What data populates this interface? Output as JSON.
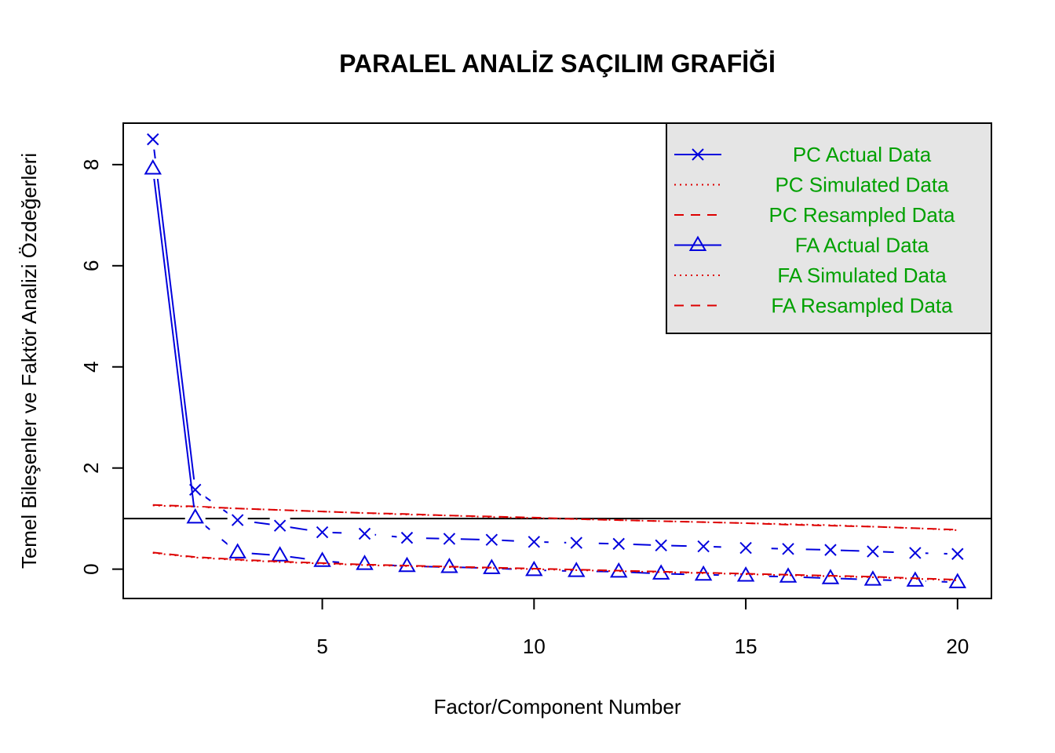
{
  "chart_data": {
    "type": "line",
    "title": "PARALEL ANALİZ SAÇILIM GRAFİĞİ",
    "xlabel": "Factor/Component Number",
    "ylabel": "Temel Bileşenler ve Faktör Analizi Özdeğerleri",
    "xlim": [
      0.3,
      20.8
    ],
    "ylim": [
      -0.58,
      8.82
    ],
    "x_ticks": [
      5,
      10,
      15,
      20
    ],
    "y_ticks": [
      0,
      2,
      4,
      6,
      8
    ],
    "reference_line": 1,
    "legend_position": "top-right",
    "legend_background": "#e5e5e5",
    "x": [
      1,
      2,
      3,
      4,
      5,
      6,
      7,
      8,
      9,
      10,
      11,
      12,
      13,
      14,
      15,
      16,
      17,
      18,
      19,
      20
    ],
    "series": [
      {
        "name": "PC  Actual Data",
        "color": "#0000dd",
        "marker": "cross",
        "style": "solid-then-dashed",
        "values": [
          8.5,
          1.57,
          0.97,
          0.86,
          0.73,
          0.7,
          0.62,
          0.6,
          0.58,
          0.54,
          0.52,
          0.5,
          0.47,
          0.45,
          0.42,
          0.4,
          0.38,
          0.35,
          0.32,
          0.3
        ]
      },
      {
        "name": "PC  Simulated Data",
        "color": "#dd0000",
        "marker": "none",
        "style": "dotted",
        "values": [
          1.26,
          1.23,
          1.2,
          1.17,
          1.14,
          1.11,
          1.08,
          1.06,
          1.03,
          1.01,
          0.99,
          0.97,
          0.95,
          0.93,
          0.91,
          0.89,
          0.87,
          0.84,
          0.81,
          0.77
        ]
      },
      {
        "name": "PC  Resampled Data",
        "color": "#dd0000",
        "marker": "none",
        "style": "dashed",
        "values": [
          1.27,
          1.24,
          1.2,
          1.17,
          1.14,
          1.11,
          1.09,
          1.06,
          1.04,
          1.02,
          0.99,
          0.97,
          0.95,
          0.93,
          0.91,
          0.88,
          0.86,
          0.84,
          0.81,
          0.78
        ]
      },
      {
        "name": "FA  Actual Data",
        "color": "#0000dd",
        "marker": "triangle",
        "style": "solid-then-dashed",
        "values": [
          7.92,
          1.02,
          0.33,
          0.27,
          0.16,
          0.1,
          0.06,
          0.04,
          0.02,
          -0.02,
          -0.04,
          -0.05,
          -0.09,
          -0.11,
          -0.13,
          -0.15,
          -0.18,
          -0.21,
          -0.23,
          -0.26
        ]
      },
      {
        "name": "FA  Simulated Data",
        "color": "#dd0000",
        "marker": "none",
        "style": "dotted",
        "values": [
          0.32,
          0.23,
          0.18,
          0.14,
          0.11,
          0.08,
          0.06,
          0.04,
          0.02,
          0.0,
          -0.02,
          -0.04,
          -0.06,
          -0.08,
          -0.1,
          -0.12,
          -0.14,
          -0.16,
          -0.19,
          -0.22
        ]
      },
      {
        "name": "FA  Resampled Data",
        "color": "#dd0000",
        "marker": "none",
        "style": "dashed",
        "values": [
          0.33,
          0.24,
          0.19,
          0.15,
          0.12,
          0.09,
          0.07,
          0.05,
          0.03,
          0.01,
          -0.01,
          -0.03,
          -0.05,
          -0.07,
          -0.09,
          -0.11,
          -0.13,
          -0.15,
          -0.18,
          -0.21
        ]
      }
    ]
  }
}
